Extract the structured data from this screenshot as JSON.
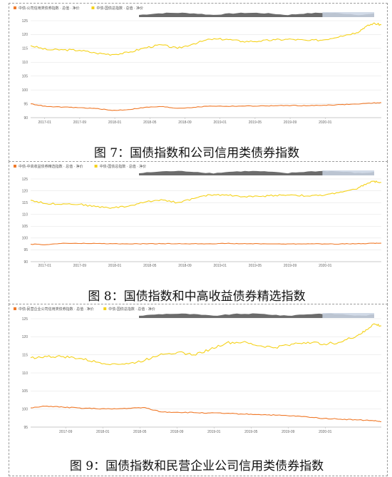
{
  "colors": {
    "orange": "#f07a2a",
    "yellow": "#f5d21b",
    "grid": "#e6e6e6",
    "axis": "#bbbbbb",
    "navigator_fill": "#6b6b6b",
    "navigator_window": "#c9d3e3"
  },
  "captions": [
    "图 7：国债指数和公司信用类债券指数",
    "图 8：国债指数和中高收益债券精选指数",
    "图 9：国债指数和民营企业公司信用类债券指数"
  ],
  "chart_data": [
    {
      "type": "line",
      "legend": [
        "中债-公司信用类债券指数 · 总值 · 净价",
        "中债-国债总指数 · 总值 · 净价"
      ],
      "yticks": [
        "90",
        "95",
        "100",
        "105",
        "110",
        "115",
        "120",
        "125"
      ],
      "ylim": [
        90,
        125
      ],
      "xticks": [
        "2017-01",
        "2017-09",
        "2018-01",
        "2018-05",
        "2018-09",
        "2019-01",
        "2019-05",
        "2019-09",
        "2020-01"
      ],
      "xlim": [
        0,
        43
      ],
      "series": [
        {
          "name": "中债-国债总指数 · 总值 · 净价",
          "color": "yellow",
          "x": [
            0,
            2,
            4,
            6,
            8,
            10,
            12,
            14,
            16,
            18,
            20,
            22,
            24,
            26,
            28,
            30,
            32,
            34,
            36,
            38,
            40,
            41,
            42,
            43
          ],
          "values": [
            116,
            114.5,
            114.5,
            114.3,
            113.3,
            112.8,
            113.5,
            115.2,
            116.3,
            115,
            116.7,
            118.3,
            118.3,
            117.5,
            117.6,
            118.1,
            118.3,
            117.8,
            118.1,
            119.5,
            120.7,
            122.7,
            124,
            123.5
          ]
        },
        {
          "name": "中债-公司信用类债券指数 · 总值 · 净价",
          "color": "orange",
          "x": [
            0,
            2,
            4,
            6,
            8,
            10,
            12,
            14,
            16,
            18,
            20,
            22,
            24,
            26,
            28,
            30,
            32,
            34,
            36,
            38,
            40,
            42,
            43
          ],
          "values": [
            95,
            94,
            93.8,
            93.6,
            93.3,
            92.6,
            92.9,
            93.7,
            94,
            93.4,
            93.7,
            94.2,
            94.1,
            94.2,
            94.2,
            94.3,
            94.4,
            94.3,
            94.5,
            94.7,
            94.9,
            95.3,
            95.4
          ]
        }
      ]
    },
    {
      "type": "line",
      "legend": [
        "中债-中高收益债券精选指数 · 总值 · 净价",
        "中债-国债总指数 · 总值 · 净价"
      ],
      "yticks": [
        "90",
        "95",
        "100",
        "105",
        "110",
        "115",
        "120",
        "125"
      ],
      "ylim": [
        90,
        125
      ],
      "xticks": [
        "2017-01",
        "2017-09",
        "2018-01",
        "2018-05",
        "2018-09",
        "2019-01",
        "2019-05",
        "2019-09",
        "2020-01"
      ],
      "xlim": [
        0,
        43
      ],
      "series": [
        {
          "name": "中债-国债总指数 · 总值 · 净价",
          "color": "yellow",
          "x": [
            0,
            2,
            4,
            6,
            8,
            10,
            12,
            14,
            16,
            18,
            20,
            22,
            24,
            26,
            28,
            30,
            32,
            34,
            36,
            38,
            40,
            41,
            42,
            43
          ],
          "values": [
            116,
            114.5,
            114.5,
            114.3,
            113.3,
            112.8,
            113.5,
            115.2,
            116.3,
            115,
            116.7,
            118.3,
            118.3,
            117.5,
            117.6,
            118.1,
            118.3,
            117.8,
            118.1,
            119.5,
            120.7,
            122.7,
            124,
            123.5
          ]
        },
        {
          "name": "中债-中高收益债券精选指数 · 总值 · 净价",
          "color": "orange",
          "x": [
            0,
            2,
            4,
            6,
            8,
            10,
            12,
            14,
            16,
            18,
            20,
            22,
            24,
            26,
            28,
            30,
            32,
            34,
            36,
            38,
            40,
            42,
            43
          ],
          "values": [
            97.4,
            97.2,
            97.8,
            97.7,
            97.7,
            97.6,
            97.5,
            97.6,
            97.6,
            97.6,
            97.6,
            97.6,
            97.7,
            97.6,
            97.6,
            97.5,
            97.5,
            97.6,
            97.5,
            97.5,
            97.6,
            97.8,
            97.8
          ]
        }
      ]
    },
    {
      "type": "line",
      "legend": [
        "中债-民营企业公司信用类债券指数 · 总值 · 净价",
        "中债-国债总指数 · 总值 · 净价"
      ],
      "yticks": [
        "95",
        "100",
        "105",
        "110",
        "115",
        "120",
        "125"
      ],
      "ylim": [
        95,
        125
      ],
      "xticks": [
        "2017-09",
        "2018-01",
        "2018-05",
        "2018-09",
        "2019-01",
        "2019-05",
        "2019-09",
        "2020-01"
      ],
      "xlim": [
        0,
        43
      ],
      "series": [
        {
          "name": "中债-国债总指数 · 总值 · 净价",
          "color": "yellow",
          "x": [
            0,
            2,
            4,
            6,
            8,
            10,
            12,
            14,
            16,
            18,
            20,
            22,
            24,
            26,
            28,
            30,
            32,
            34,
            36,
            38,
            40,
            41,
            42,
            43
          ],
          "values": [
            114.2,
            114.5,
            114.5,
            114,
            113,
            112.5,
            112.5,
            113.5,
            115.3,
            115.7,
            115,
            116.5,
            118.3,
            118.5,
            117.5,
            117,
            118,
            118.5,
            118,
            118.5,
            120.3,
            121.5,
            123.5,
            123
          ]
        },
        {
          "name": "中债-民营企业公司信用类债券指数 · 总值 · 净价",
          "color": "orange",
          "x": [
            0,
            2,
            4,
            6,
            8,
            10,
            12,
            14,
            16,
            18,
            20,
            22,
            24,
            26,
            28,
            30,
            32,
            34,
            36,
            38,
            40,
            42,
            43
          ],
          "values": [
            100.3,
            100.8,
            100.5,
            100.3,
            100.1,
            100,
            100.2,
            100.4,
            99.2,
            99.1,
            99,
            98.9,
            98.8,
            98.6,
            98.5,
            98.3,
            98.1,
            97.8,
            97.4,
            97.2,
            97,
            96.8,
            96.5
          ]
        }
      ]
    }
  ]
}
